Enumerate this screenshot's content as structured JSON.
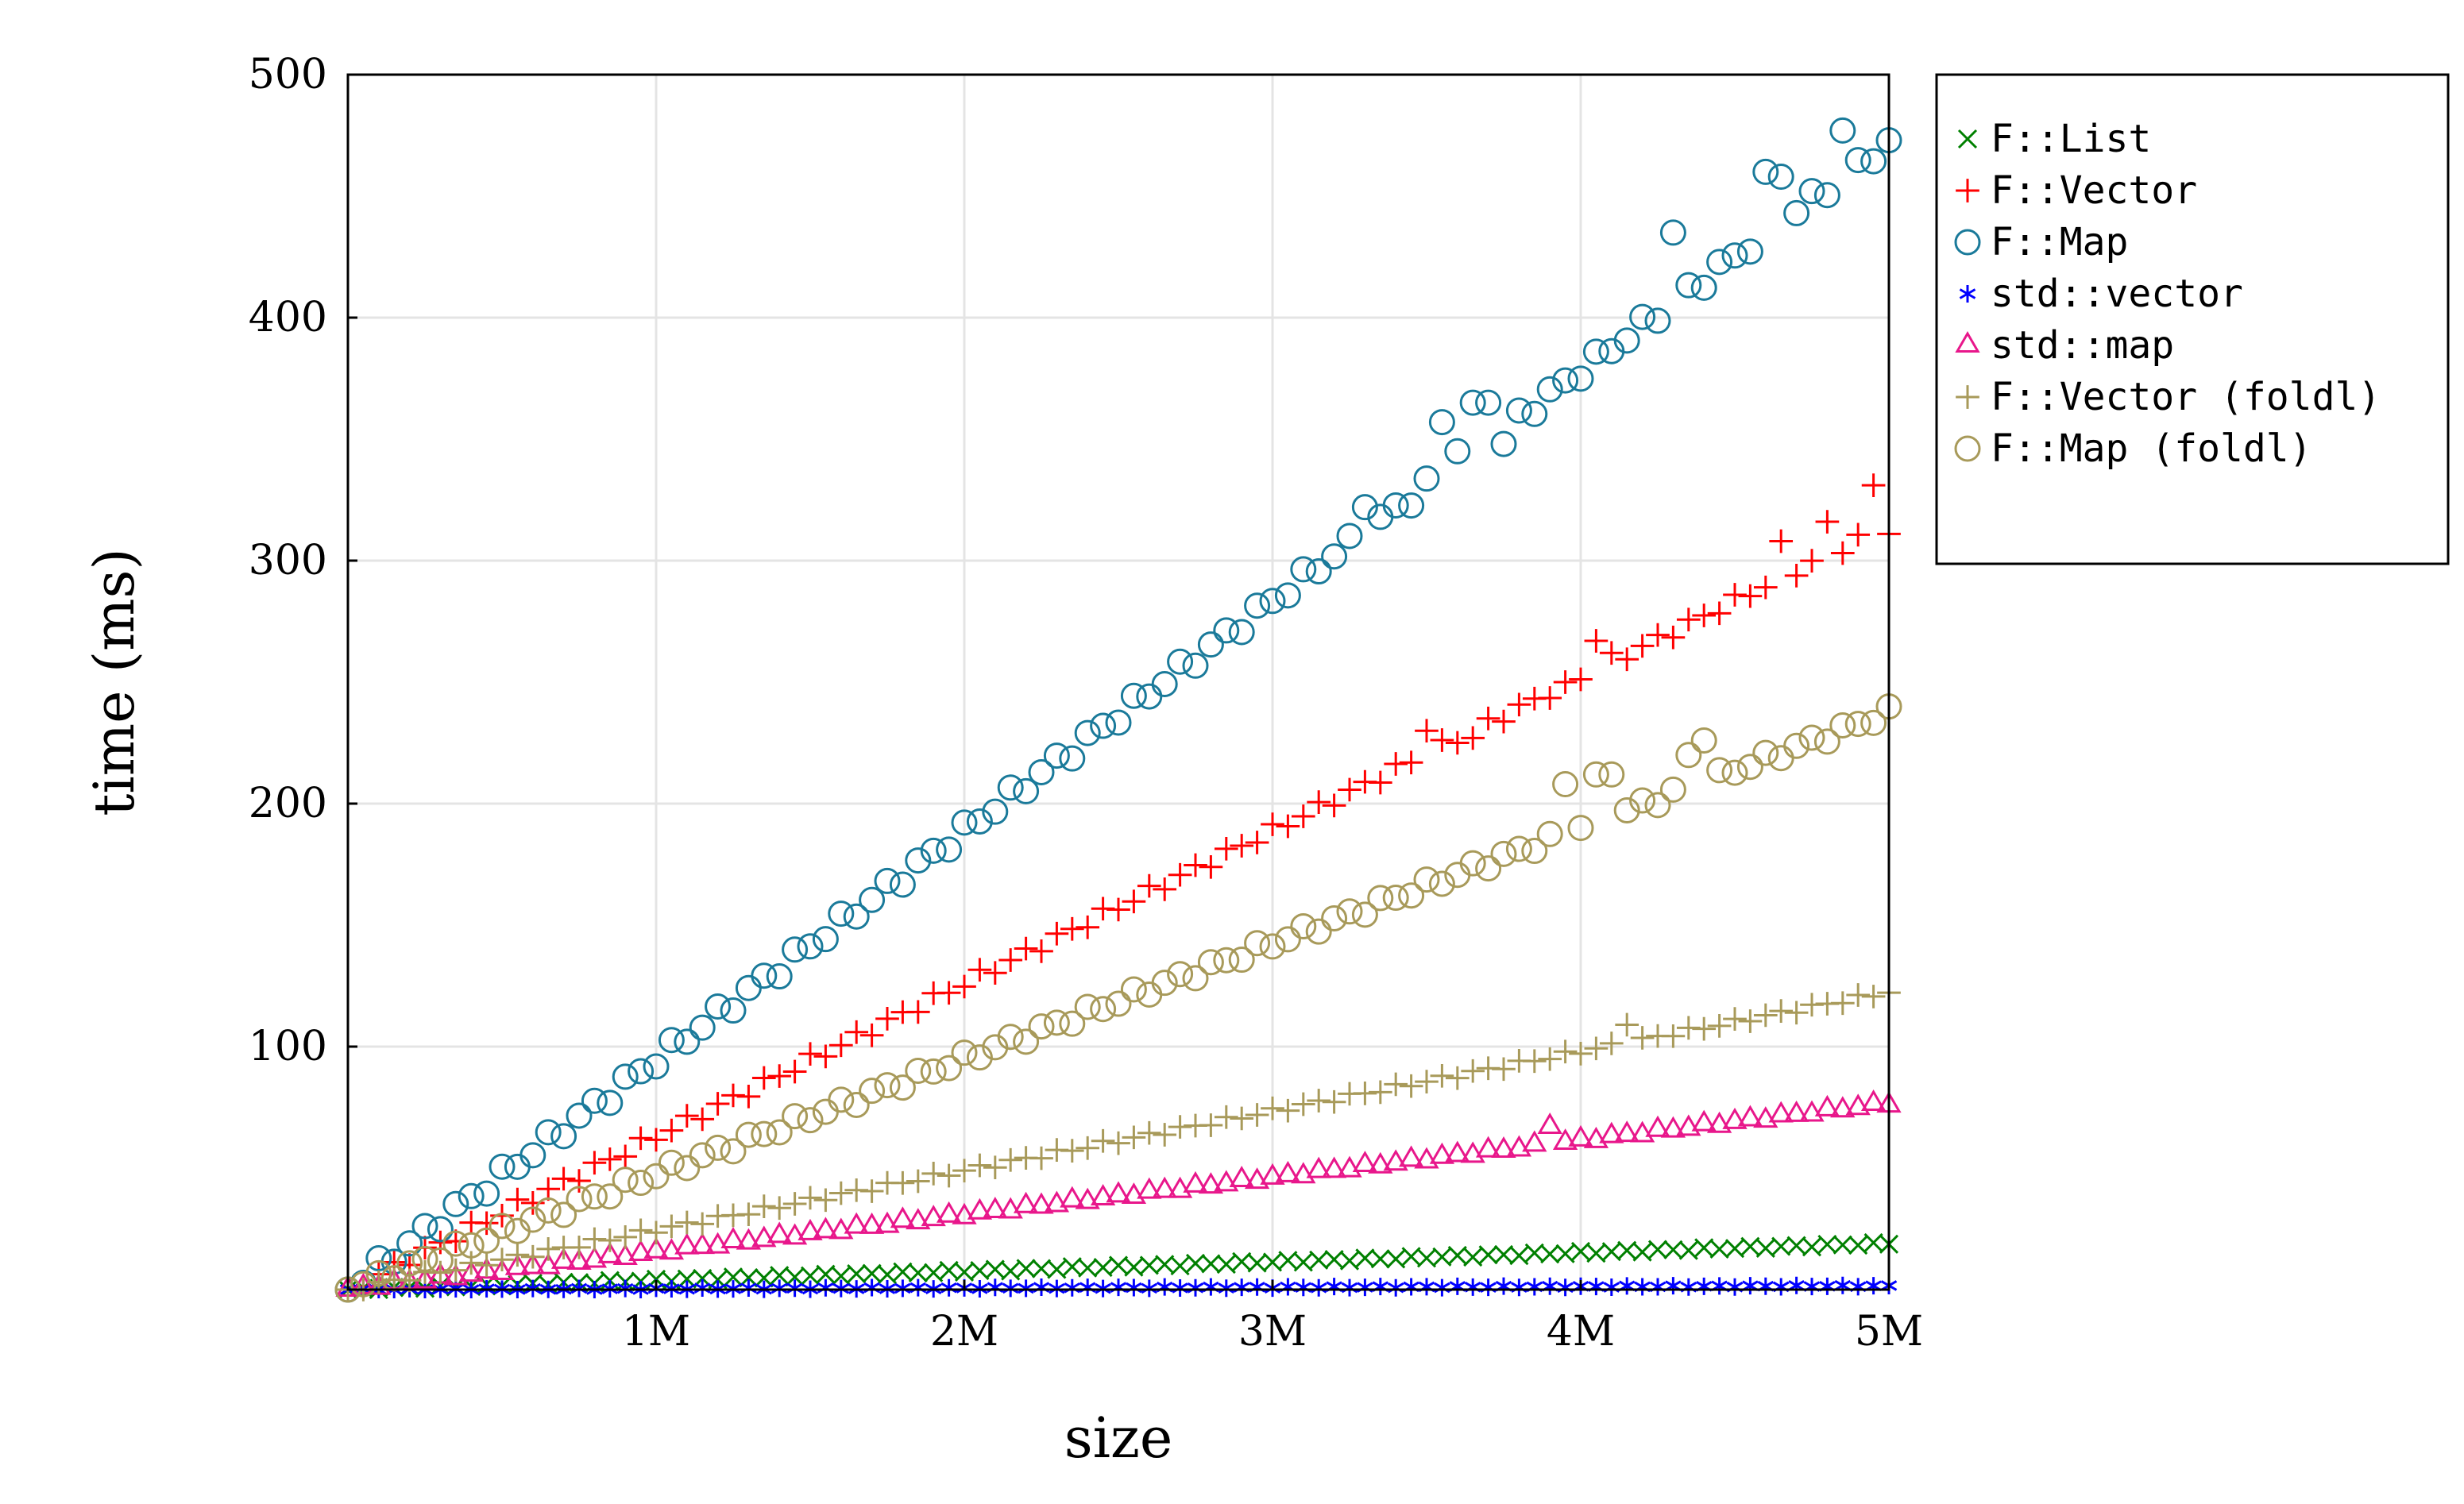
{
  "chart_data": {
    "type": "scatter",
    "title": "",
    "xlabel": "size",
    "ylabel": "time (ms)",
    "xlim": [
      0,
      5000000
    ],
    "ylim": [
      0,
      500
    ],
    "grid": true,
    "legend_position": "outside-top-right",
    "x_ticks": [
      {
        "value": 1000000,
        "label": "1M"
      },
      {
        "value": 2000000,
        "label": "2M"
      },
      {
        "value": 3000000,
        "label": "3M"
      },
      {
        "value": 4000000,
        "label": "4M"
      },
      {
        "value": 5000000,
        "label": "5M"
      }
    ],
    "y_ticks": [
      {
        "value": 100,
        "label": "100"
      },
      {
        "value": 200,
        "label": "200"
      },
      {
        "value": 300,
        "label": "300"
      },
      {
        "value": 400,
        "label": "400"
      },
      {
        "value": 500,
        "label": "500"
      }
    ],
    "x_range": {
      "start": 0,
      "step": 50000,
      "count": 101
    },
    "series": [
      {
        "name": "F::List",
        "marker": "x",
        "color": "#008000",
        "slope": 3.8,
        "noise": 0.5,
        "outliers": []
      },
      {
        "name": "F::Vector",
        "marker": "plus",
        "color": "#ff0000",
        "slope": 63,
        "noise": 2.5,
        "outliers": [
          [
            3.5,
            230
          ],
          [
            3.65,
            227
          ],
          [
            3.95,
            250
          ],
          [
            4.05,
            267
          ],
          [
            4.1,
            262
          ],
          [
            4.65,
            308
          ],
          [
            4.8,
            316
          ],
          [
            4.95,
            331
          ],
          [
            5.0,
            311
          ]
        ]
      },
      {
        "name": "F::Map",
        "marker": "circle",
        "color": "#1a7a9a",
        "slope": 94.5,
        "noise": 3.5,
        "outliers": [
          [
            3.3,
            322
          ],
          [
            3.55,
            357
          ],
          [
            3.6,
            345
          ],
          [
            3.65,
            365
          ],
          [
            3.7,
            365
          ],
          [
            3.75,
            348
          ],
          [
            4.3,
            435
          ],
          [
            4.6,
            460
          ],
          [
            4.65,
            458
          ],
          [
            4.7,
            443
          ],
          [
            4.85,
            477
          ],
          [
            5.0,
            473
          ]
        ]
      },
      {
        "name": "std::vector",
        "marker": "star",
        "color": "#0000ff",
        "slope": 0.3,
        "noise": 0.3,
        "outliers": []
      },
      {
        "name": "std::map",
        "marker": "triangle",
        "color": "#e8178b",
        "slope": 15.3,
        "noise": 0.8,
        "outliers": [
          [
            3.9,
            67
          ]
        ]
      },
      {
        "name": "F::Vector (foldl)",
        "marker": "plus",
        "color": "#a89a5a",
        "slope": 24.5,
        "noise": 1.2,
        "outliers": [
          [
            4.15,
            109
          ]
        ]
      },
      {
        "name": "F::Map (foldl)",
        "marker": "circle",
        "color": "#a89a5a",
        "slope": 47.5,
        "noise": 2.5,
        "outliers": [
          [
            3.95,
            208
          ],
          [
            4.0,
            190
          ],
          [
            4.05,
            212
          ],
          [
            4.1,
            212
          ],
          [
            4.35,
            220
          ],
          [
            4.4,
            226
          ]
        ]
      }
    ]
  }
}
